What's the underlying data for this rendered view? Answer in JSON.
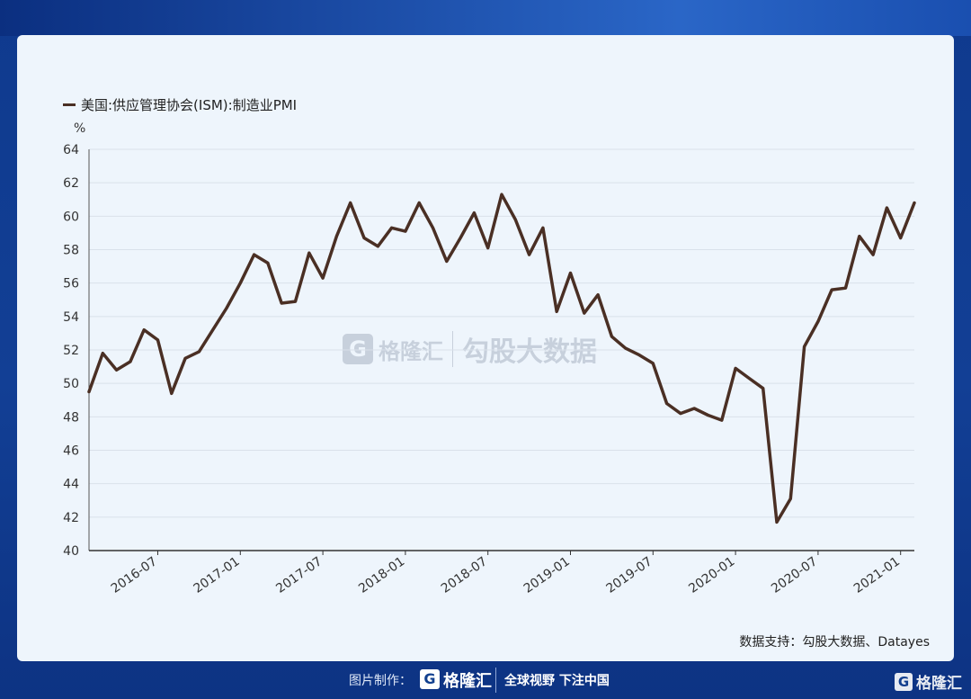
{
  "legend": {
    "label": "美国:供应管理协会(ISM):制造业PMI",
    "color": "#4a2f24"
  },
  "unit": "%",
  "watermark": {
    "logo": "G",
    "name": "格隆汇",
    "name2": "勾股大数据"
  },
  "source": "数据支持：勾股大数据、Datayes",
  "footer": {
    "label": "图片制作：",
    "logo": "G",
    "brand": "格隆汇",
    "slogan": "全球视野 下注中国"
  },
  "corner": {
    "logo": "G",
    "brand": "格隆汇"
  },
  "chart_data": {
    "type": "line",
    "title": "",
    "xlabel": "",
    "ylabel": "%",
    "ylim": [
      40,
      64
    ],
    "yticks": [
      40,
      42,
      44,
      46,
      48,
      50,
      52,
      54,
      56,
      58,
      60,
      62,
      64
    ],
    "grid": true,
    "legend_position": "top-left",
    "x_tick_labels": [
      "2016-07",
      "2017-01",
      "2017-07",
      "2018-01",
      "2018-07",
      "2019-01",
      "2019-07",
      "2020-01",
      "2020-07",
      "2021-01"
    ],
    "x": [
      "2016-02",
      "2016-03",
      "2016-04",
      "2016-05",
      "2016-06",
      "2016-07",
      "2016-08",
      "2016-09",
      "2016-10",
      "2016-11",
      "2016-12",
      "2017-01",
      "2017-02",
      "2017-03",
      "2017-04",
      "2017-05",
      "2017-06",
      "2017-07",
      "2017-08",
      "2017-09",
      "2017-10",
      "2017-11",
      "2017-12",
      "2018-01",
      "2018-02",
      "2018-03",
      "2018-04",
      "2018-05",
      "2018-06",
      "2018-07",
      "2018-08",
      "2018-09",
      "2018-10",
      "2018-11",
      "2018-12",
      "2019-01",
      "2019-02",
      "2019-03",
      "2019-04",
      "2019-05",
      "2019-06",
      "2019-07",
      "2019-08",
      "2019-09",
      "2019-10",
      "2019-11",
      "2019-12",
      "2020-01",
      "2020-02",
      "2020-03",
      "2020-04",
      "2020-05",
      "2020-06",
      "2020-07",
      "2020-08",
      "2020-09",
      "2020-10",
      "2020-11",
      "2020-12",
      "2021-01",
      "2021-02"
    ],
    "series": [
      {
        "name": "美国:供应管理协会(ISM):制造业PMI",
        "color": "#4a2f24",
        "values": [
          49.5,
          51.8,
          50.8,
          51.3,
          53.2,
          52.6,
          49.4,
          51.5,
          51.9,
          53.2,
          54.5,
          56.0,
          57.7,
          57.2,
          54.8,
          54.9,
          57.8,
          56.3,
          58.8,
          60.8,
          58.7,
          58.2,
          59.3,
          59.1,
          60.8,
          59.3,
          57.3,
          58.7,
          60.2,
          58.1,
          61.3,
          59.8,
          57.7,
          59.3,
          54.3,
          56.6,
          54.2,
          55.3,
          52.8,
          52.1,
          51.7,
          51.2,
          48.8,
          48.2,
          48.5,
          48.1,
          47.8,
          50.9,
          50.3,
          49.7,
          41.7,
          43.1,
          52.2,
          53.7,
          55.6,
          55.7,
          58.8,
          57.7,
          60.5,
          58.7,
          60.8
        ]
      }
    ]
  }
}
